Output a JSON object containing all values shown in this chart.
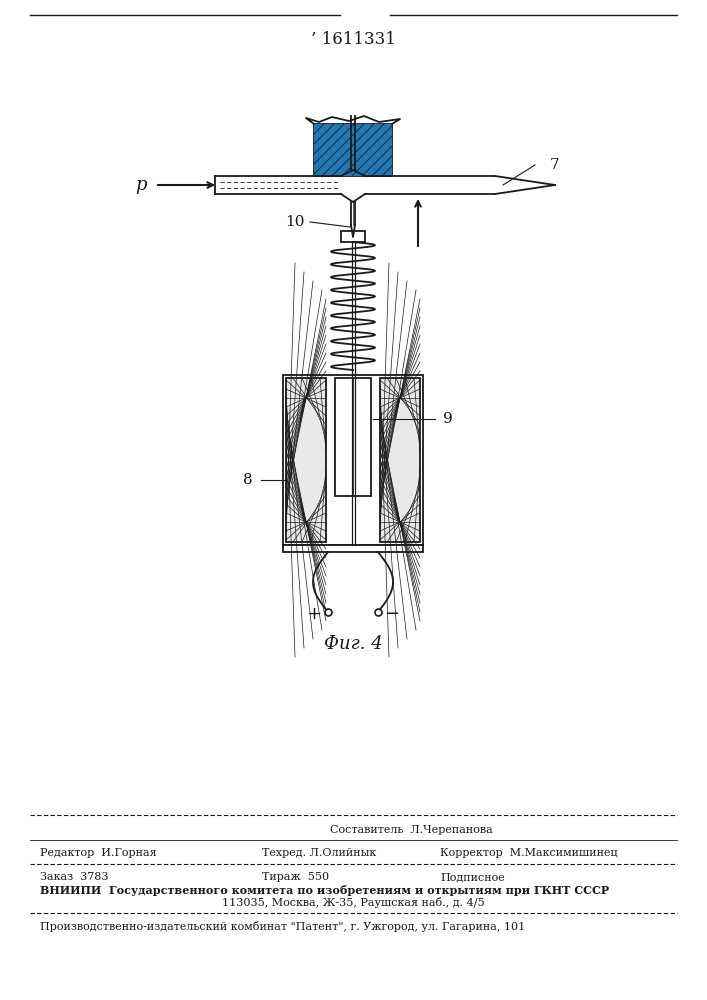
{
  "patent_number": "’ 1611331",
  "figure_label": "Фиг. 4",
  "label_7": "7",
  "label_8": "8",
  "label_9": "9",
  "label_10": "10",
  "label_p": "p",
  "label_plus": "+",
  "label_minus": "−",
  "footer_sestavitel": "Составитель  Л.Черепанова",
  "footer_redaktor": "Редактор  И.Горная",
  "footer_tehred": "Техред. Л.Олийнык",
  "footer_korrektor": "Корректор  М.Максимишинец",
  "footer_zakaz": "Заказ  3783",
  "footer_tirazh": "Тираж  550",
  "footer_podpisnoe": "Подписное",
  "footer_vnipi": "ВНИИПИ  Государственного комитета по изобретениям и открытиям при ГКНТ СССР",
  "footer_address": "113035, Москва, Ж-35, Раушская наб., д. 4/5",
  "footer_kombinat": "Производственно-издательский комбинат \"Патент\", г. Ужгород, ул. Гагарина, 101",
  "bg_color": "#ffffff",
  "line_color": "#1a1a1a"
}
